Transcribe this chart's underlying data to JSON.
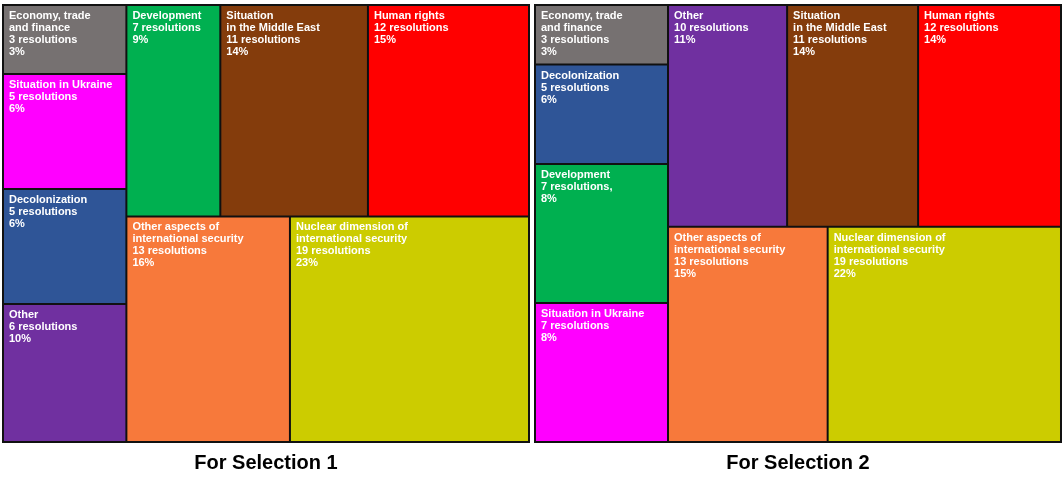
{
  "chart_data": [
    {
      "type": "other",
      "title": "For Selection 1",
      "categories": [
        "Nuclear dimension of\ninternational security",
        "Other aspects of\ninternational security",
        "Human rights",
        "Development",
        "Situation in Ukraine",
        "Decolonization",
        "Economy, trade\nand finance",
        "Situation\nin the Middle East",
        "Other"
      ],
      "series": [
        {
          "colors": [
            "#cccc00",
            "#f7793b",
            "#ff0000",
            "#00b050",
            "#ff00ff",
            "#2f5597",
            "#767171",
            "#843c0c",
            "#7030a0"
          ],
          "values": [
            19,
            13,
            12,
            7,
            5,
            5,
            3,
            11,
            6
          ],
          "value_labels": [
            "19 resolutions",
            "13 resolutions",
            "12 resolutions",
            "7 resolutions",
            "5 resolutions",
            "5 resolutions",
            "3 resolutions",
            "11 resolutions",
            "6 resolutions"
          ]
        },
        {
          "values": [
            23,
            16,
            15,
            9,
            6,
            6,
            3,
            14,
            10
          ],
          "value_labels": [
            "23%",
            "16%",
            "15%",
            "9%",
            "6%",
            "6%",
            "3%",
            "14%",
            "10%"
          ]
        }
      ]
    },
    {
      "type": "other",
      "title": "For Selection 2",
      "categories": [
        "Nuclear dimension of\ninternational security",
        "Other aspects of\ninternational security",
        "Human rights",
        "Development",
        "Situation in Ukraine",
        "Decolonization",
        "Situation\nin the Middle East",
        "Economy, trade\nand finance",
        "Other"
      ],
      "series": [
        {
          "colors": [
            "#cccc00",
            "#f7793b",
            "#ff0000",
            "#00b050",
            "#ff00ff",
            "#2f5597",
            "#843c0c",
            "#767171",
            "#7030a0"
          ],
          "values": [
            19,
            13,
            12,
            7,
            7,
            5,
            11,
            3,
            10
          ],
          "value_labels": [
            "19 resolutions",
            "13 resolutions",
            "12 resolutions",
            "7 resolutions,",
            "7 resolutions",
            "5 resolutions",
            "11 resolutions",
            "3 resolutions",
            "10 resolutions"
          ]
        },
        {
          "values": [
            22,
            15,
            14,
            8,
            8,
            6,
            14,
            3,
            11
          ],
          "value_labels": [
            "22%",
            "15%",
            "14%",
            "8%",
            "8%",
            "6%",
            "14%",
            "3%",
            "11%"
          ]
        }
      ]
    }
  ]
}
